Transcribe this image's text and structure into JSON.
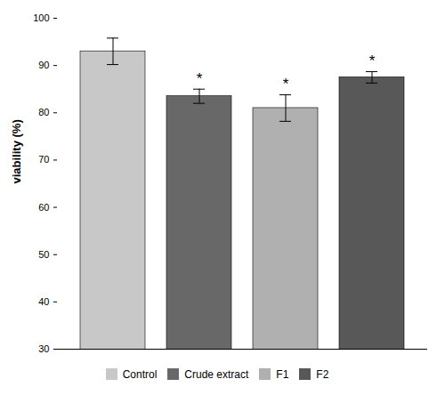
{
  "chart_data": {
    "type": "bar",
    "categories": [
      "Control",
      "Crude extract",
      "F1",
      "F2"
    ],
    "values": [
      93.0,
      83.5,
      81.0,
      87.5
    ],
    "errors": [
      2.8,
      1.5,
      2.8,
      1.2
    ],
    "colors": [
      "#c8c8c8",
      "#686868",
      "#b0b0b0",
      "#585858"
    ],
    "ylabel": "viability (%)",
    "ylim": [
      30,
      100
    ],
    "yticks": [
      30,
      40,
      50,
      60,
      70,
      80,
      90,
      100
    ],
    "annotations": [
      null,
      "*",
      "*",
      "*"
    ],
    "legend": "bottom",
    "grid": false,
    "tick_labels": "y"
  }
}
